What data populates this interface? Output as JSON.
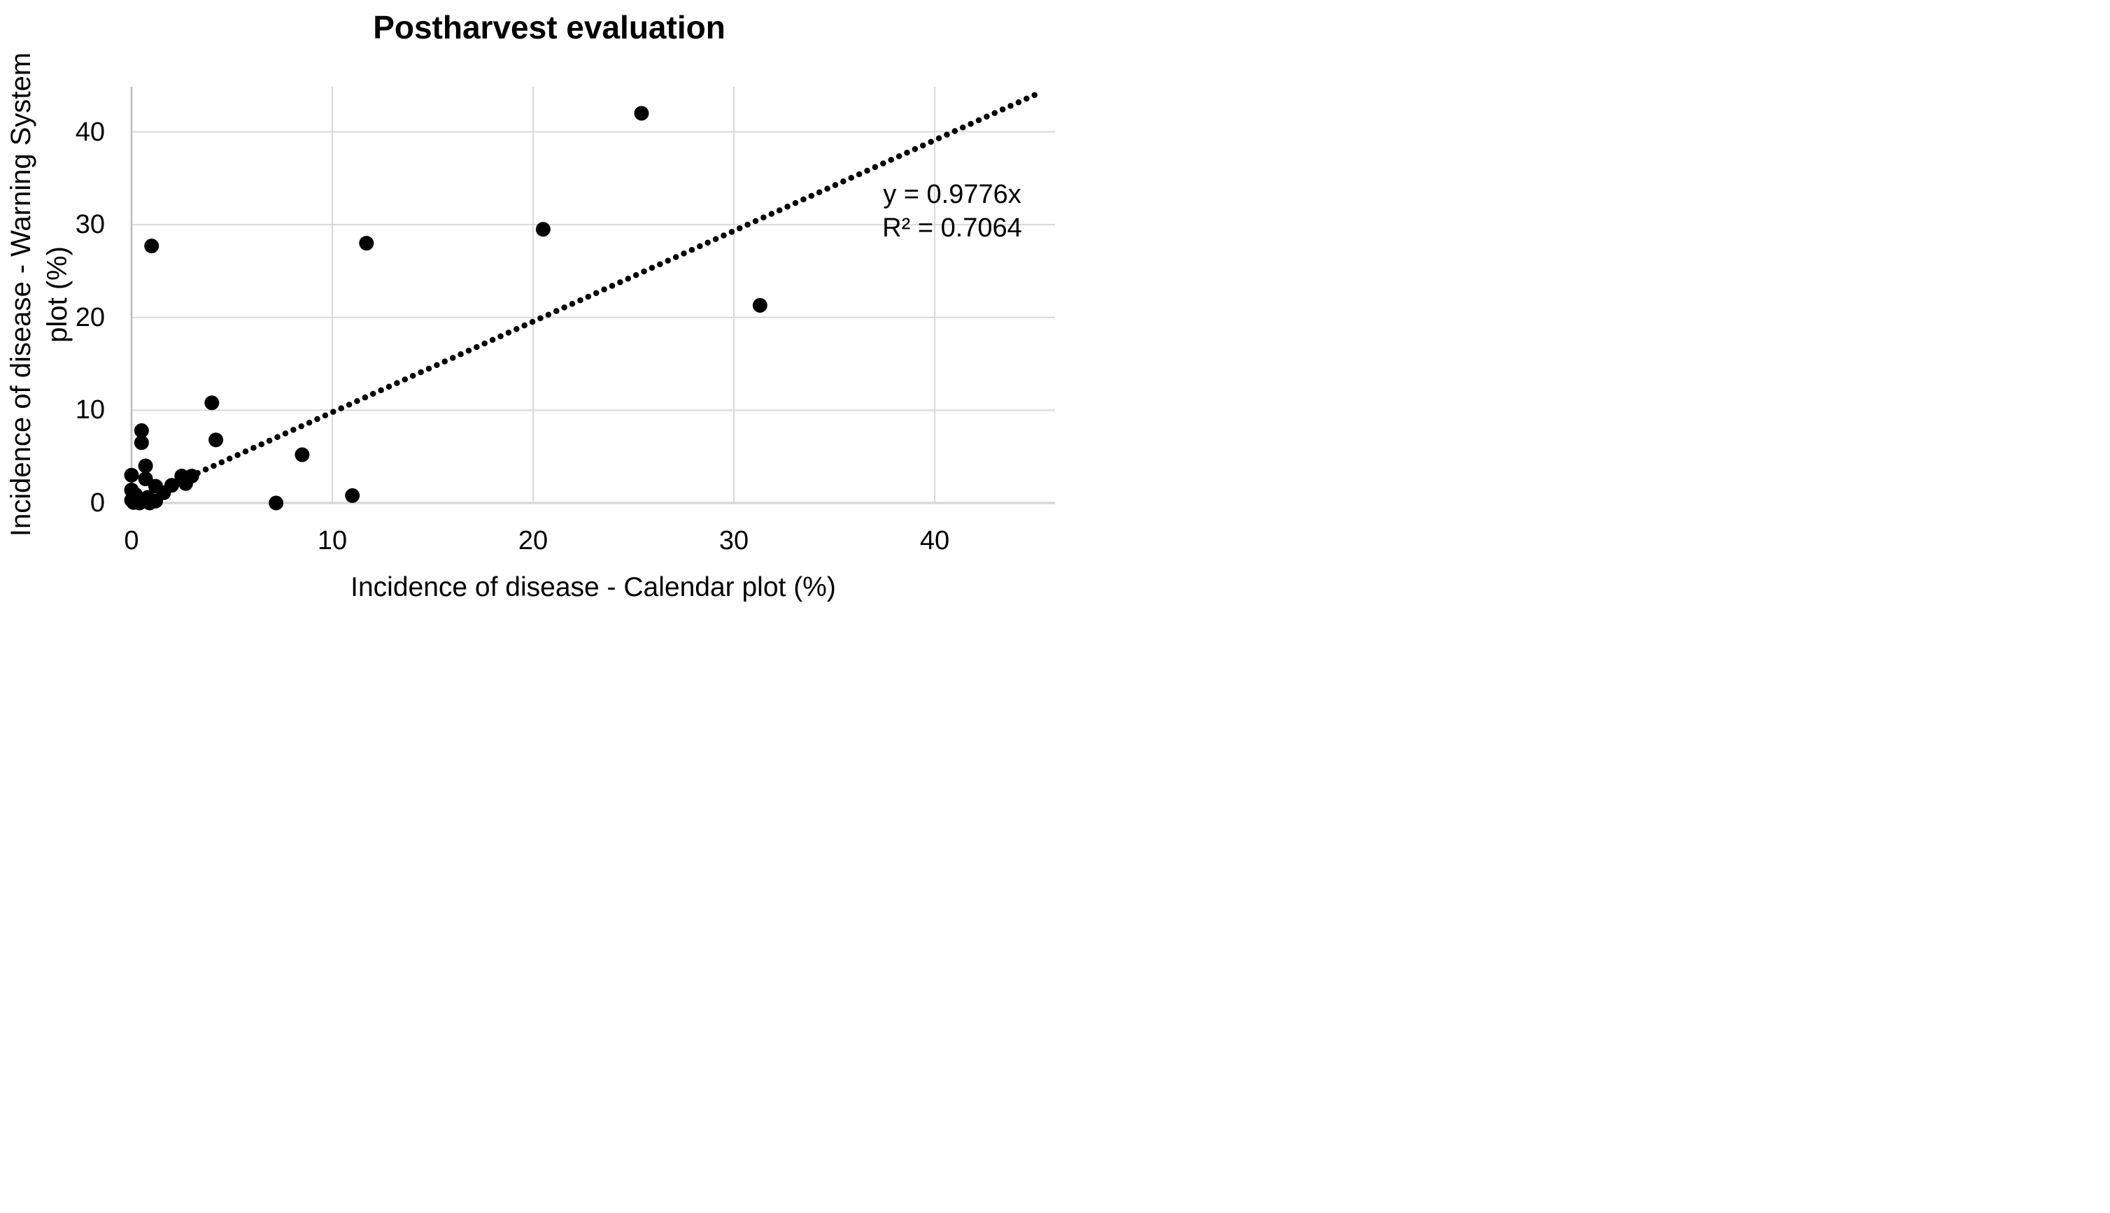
{
  "title": "Postharvest evaluation",
  "annotation": {
    "equation": "y = 0.9776x",
    "r_squared": "R² = 0.7064"
  },
  "chart_data": {
    "type": "scatter",
    "title": "Postharvest evaluation",
    "xlabel": "Incidence of disease - Calendar plot (%)",
    "ylabel_line1": "Incidence of disease - Warning System",
    "ylabel_line2": "plot (%)",
    "xlim": [
      0,
      46
    ],
    "ylim": [
      0,
      45
    ],
    "x_ticks": [
      0,
      10,
      20,
      30,
      40
    ],
    "y_ticks": [
      0,
      10,
      20,
      30,
      40
    ],
    "grid": true,
    "legend": "none",
    "marker_color": "#000000",
    "gridline_color": "#d9d9d9",
    "axis_line_color": "#bfbfbf",
    "points": [
      [
        0,
        3.0
      ],
      [
        0.7,
        4.0
      ],
      [
        0.7,
        2.6
      ],
      [
        1.2,
        1.8
      ],
      [
        1.6,
        1.1
      ],
      [
        2.0,
        1.9
      ],
      [
        2.5,
        2.9
      ],
      [
        3.0,
        2.9
      ],
      [
        2.7,
        2.1
      ],
      [
        0,
        1.4
      ],
      [
        0,
        0.3
      ],
      [
        0.1,
        0.05
      ],
      [
        0.2,
        0.9
      ],
      [
        0.4,
        0
      ],
      [
        0.8,
        0.6
      ],
      [
        0.9,
        0
      ],
      [
        1.2,
        0.2
      ],
      [
        0.5,
        7.8
      ],
      [
        0.5,
        6.5
      ],
      [
        4.0,
        10.8
      ],
      [
        4.2,
        6.8
      ],
      [
        8.5,
        5.2
      ],
      [
        7.2,
        0
      ],
      [
        11.0,
        0.8
      ],
      [
        1.0,
        27.7
      ],
      [
        11.7,
        28.0
      ],
      [
        20.5,
        29.5
      ],
      [
        25.4,
        42.0
      ],
      [
        31.3,
        21.3
      ]
    ],
    "trendline": {
      "type": "linear",
      "slope": 0.9776,
      "intercept": 0,
      "x_start": 2.9,
      "x_end": 45.0,
      "style": "dotted",
      "equation_label": "y = 0.9776x",
      "r_squared": 0.7064
    }
  }
}
